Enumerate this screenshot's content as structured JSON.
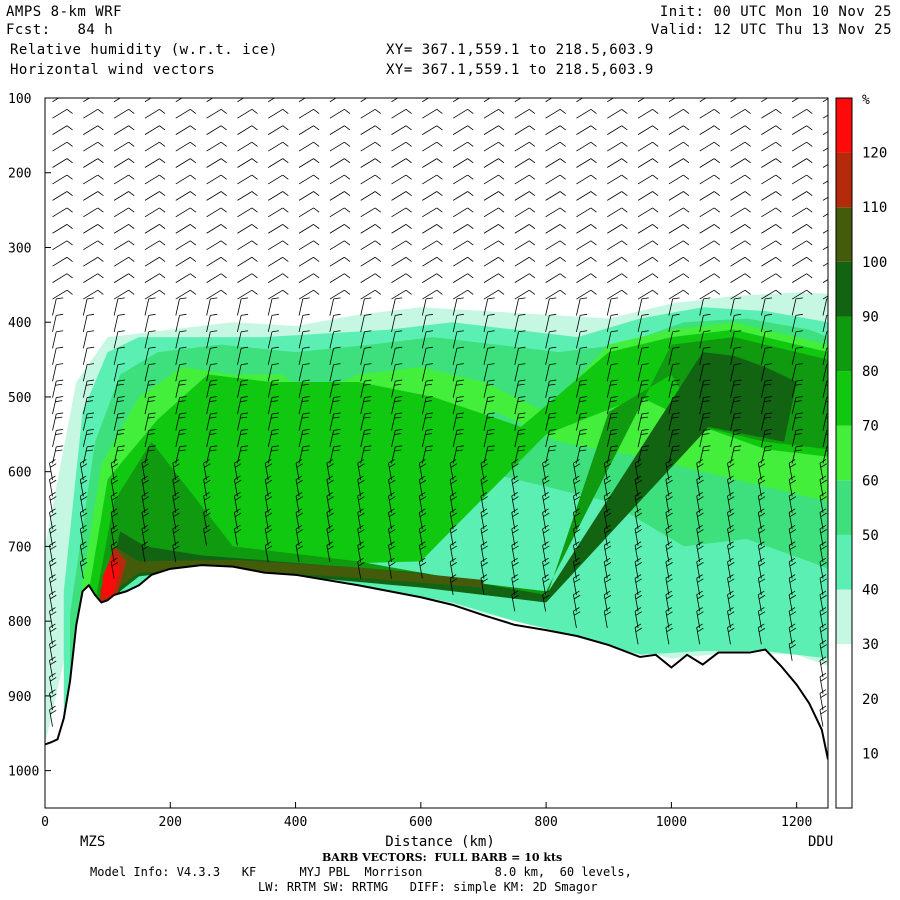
{
  "header": {
    "model": "AMPS 8-km WRF",
    "fcst_label": "Fcst:",
    "fcst_value": "84 h",
    "field1": "Relative humidity (w.r.t. ice)",
    "field2": "Horizontal wind vectors",
    "init": "Init: 00 UTC Mon 10 Nov 25",
    "valid": "Valid: 12 UTC Thu 13 Nov 25",
    "xy1": "XY= 367.1,559.1 to 218.5,603.9",
    "xy2": "XY= 367.1,559.1 to 218.5,603.9"
  },
  "chart_data": {
    "type": "heatmap",
    "title": "Relative humidity (w.r.t. ice)",
    "xlabel": "Distance (km)",
    "ylabel": "",
    "xlim": [
      0,
      1250
    ],
    "ylim": [
      1050,
      100
    ],
    "x_ticks": [
      0,
      200,
      400,
      600,
      800,
      1000,
      1200
    ],
    "y_ticks": [
      100,
      200,
      300,
      400,
      500,
      600,
      700,
      800,
      900,
      1000
    ],
    "x_endpoints": [
      "MZS",
      "DDU"
    ],
    "colorbar": {
      "unit": "%",
      "levels": [
        10,
        20,
        30,
        40,
        50,
        60,
        70,
        80,
        90,
        100,
        110,
        120
      ],
      "colors": [
        "#ffffff",
        "#ffffff",
        "#ffffff",
        "#c6f7e2",
        "#5cefb4",
        "#3de07c",
        "#43ef3b",
        "#10c810",
        "#0f9a0f",
        "#126312",
        "#455b0c",
        "#b52a0a",
        "#ff0a0a"
      ]
    },
    "terrain_pressure": {
      "x": [
        0,
        10,
        20,
        30,
        40,
        50,
        60,
        70,
        80,
        90,
        100,
        110,
        130,
        150,
        170,
        200,
        250,
        300,
        350,
        400,
        450,
        500,
        550,
        600,
        650,
        700,
        750,
        800,
        850,
        900,
        950,
        975,
        1000,
        1025,
        1050,
        1075,
        1100,
        1125,
        1150,
        1175,
        1200,
        1220,
        1240,
        1250
      ],
      "y": [
        965,
        962,
        958,
        930,
        880,
        805,
        760,
        752,
        765,
        775,
        772,
        765,
        760,
        752,
        738,
        730,
        725,
        727,
        735,
        738,
        745,
        752,
        760,
        768,
        778,
        792,
        805,
        812,
        820,
        832,
        848,
        845,
        862,
        845,
        858,
        842,
        842,
        842,
        838,
        860,
        885,
        910,
        945,
        985
      ]
    },
    "rh_regions": [
      {
        "level": 30,
        "x": [
          0,
          50,
          100,
          200,
          300,
          400,
          500,
          600,
          700,
          800,
          900,
          1000,
          1100,
          1200,
          1250,
          1250,
          1200,
          1100,
          1000,
          900,
          800,
          700,
          600,
          500,
          400,
          300,
          200,
          100,
          50,
          0
        ],
        "y": [
          700,
          480,
          420,
          410,
          400,
          405,
          390,
          380,
          385,
          390,
          395,
          375,
          365,
          360,
          362,
          860,
          845,
          842,
          850,
          830,
          810,
          790,
          765,
          752,
          738,
          727,
          730,
          760,
          780,
          965
        ]
      },
      {
        "level": 40,
        "x": [
          30,
          60,
          100,
          150,
          250,
          350,
          450,
          550,
          650,
          750,
          850,
          950,
          1050,
          1150,
          1250,
          1250,
          1150,
          1050,
          950,
          850,
          750,
          650,
          550,
          450,
          350,
          250,
          150,
          100,
          60,
          30
        ],
        "y": [
          760,
          520,
          440,
          420,
          420,
          420,
          415,
          410,
          400,
          410,
          420,
          395,
          380,
          385,
          400,
          850,
          840,
          840,
          845,
          820,
          800,
          775,
          760,
          745,
          735,
          726,
          752,
          770,
          760,
          940
        ]
      },
      {
        "level": 50,
        "x": [
          40,
          80,
          120,
          180,
          280,
          400,
          520,
          620,
          720,
          820,
          920,
          1020,
          1120,
          1220,
          1250,
          1250,
          1220,
          1120,
          1020,
          900,
          700,
          500,
          300,
          150,
          80,
          40
        ],
        "y": [
          790,
          560,
          470,
          440,
          430,
          440,
          430,
          420,
          430,
          440,
          430,
          400,
          395,
          410,
          420,
          730,
          720,
          690,
          700,
          640,
          600,
          700,
          710,
          720,
          760,
          900
        ]
      },
      {
        "level": 60,
        "x": [
          50,
          90,
          150,
          220,
          300,
          380,
          420,
          500,
          600,
          700,
          800,
          900,
          1000,
          1100,
          1200,
          1250,
          1250,
          1150,
          1050,
          950,
          820,
          720,
          620,
          520,
          380,
          250,
          150,
          90,
          50
        ],
        "y": [
          800,
          590,
          500,
          460,
          470,
          470,
          500,
          470,
          460,
          480,
          520,
          430,
          410,
          400,
          420,
          430,
          640,
          620,
          600,
          580,
          560,
          520,
          540,
          600,
          690,
          700,
          710,
          750,
          880
        ]
      },
      {
        "level": 70,
        "x": [
          60,
          100,
          180,
          260,
          360,
          500,
          620,
          760,
          900,
          1000,
          1100,
          1200,
          1250,
          1250,
          1150,
          1050,
          950,
          800,
          600,
          400,
          250,
          150,
          100,
          60
        ],
        "y": [
          810,
          610,
          530,
          470,
          480,
          480,
          500,
          540,
          440,
          420,
          410,
          430,
          440,
          580,
          570,
          540,
          500,
          550,
          720,
          725,
          720,
          725,
          760,
          860
        ]
      },
      {
        "level": 80,
        "x": [
          70,
          110,
          170,
          300,
          500,
          700,
          800,
          1000,
          1100,
          1200,
          1250,
          1250,
          1150,
          1050,
          1000,
          900,
          800,
          600,
          400,
          200,
          120,
          70
        ],
        "y": [
          820,
          640,
          560,
          700,
          720,
          750,
          760,
          430,
          420,
          440,
          450,
          570,
          560,
          540,
          470,
          520,
          770,
          750,
          738,
          728,
          730,
          840
        ]
      },
      {
        "level": 90,
        "x": [
          80,
          120,
          160,
          250,
          400,
          600,
          800,
          1050,
          1100,
          1150,
          1200,
          1180,
          1120,
          1060,
          800,
          600,
          400,
          250,
          150,
          120,
          80
        ],
        "y": [
          830,
          680,
          700,
          712,
          722,
          735,
          765,
          440,
          445,
          460,
          480,
          560,
          550,
          540,
          775,
          755,
          740,
          730,
          740,
          760,
          850
        ]
      },
      {
        "level": 100,
        "x": [
          85,
          110,
          150,
          300,
          500,
          700,
          700,
          500,
          300,
          150,
          110,
          85
        ],
        "y": [
          840,
          700,
          720,
          718,
          728,
          745,
          755,
          742,
          732,
          735,
          760,
          860
        ]
      },
      {
        "level": 110,
        "x": [
          88,
          110,
          130,
          110,
          88
        ],
        "y": [
          760,
          700,
          720,
          780,
          800
        ]
      },
      {
        "level": 120,
        "x": [
          92,
          108,
          120,
          108,
          92
        ],
        "y": [
          740,
          710,
          730,
          765,
          770
        ]
      }
    ]
  },
  "footer": {
    "barb_note": "BARB VECTORS:  FULL BARB = 10 kts",
    "model_info": "Model Info: V4.3.3   KF      MYJ PBL  Morrison          8.0 km,  60 levels,",
    "physics": "LW: RRTM SW: RRTMG   DIFF: simple KM: 2D Smagor"
  },
  "colors": {
    "terrain_line": "#000000",
    "axis": "#000000",
    "barb": "#000000"
  },
  "icons": {
    "wind_barbs": "wind-barb-icon"
  }
}
